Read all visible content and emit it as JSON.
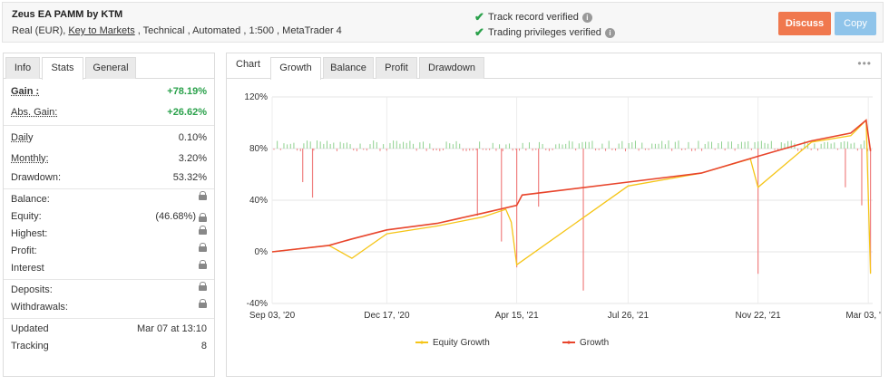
{
  "header": {
    "title": "Zeus EA PAMM by KTM",
    "meta_prefix": "Real (EUR), ",
    "meta_link": "Key to Markets",
    "meta_suffix": " , Technical , Automated , 1:500 , MetaTrader 4",
    "verified_1": "Track record verified",
    "verified_2": "Trading privileges verified",
    "discuss_label": "Discuss",
    "copy_label": "Copy",
    "accent_orange": "#f0784e",
    "accent_blue": "#8fc4ea"
  },
  "left_tabs": [
    "Info",
    "Stats",
    "General"
  ],
  "left_active_tab": "Stats",
  "stats": {
    "gain": {
      "label": "Gain :",
      "value": "+78.19%"
    },
    "abs_gain": {
      "label": "Abs. Gain:",
      "value": "+26.62%"
    },
    "daily": {
      "label": "Daily",
      "value": "0.10%"
    },
    "monthly": {
      "label": "Monthly:",
      "value": "3.20%"
    },
    "drawdown": {
      "label": "Drawdown:",
      "value": "53.32%"
    },
    "balance": {
      "label": "Balance:"
    },
    "equity": {
      "label": "Equity:",
      "value": "(46.68%)"
    },
    "highest": {
      "label": "Highest:"
    },
    "profit": {
      "label": "Profit:"
    },
    "interest": {
      "label": "Interest"
    },
    "deposits": {
      "label": "Deposits:"
    },
    "withdrawals": {
      "label": "Withdrawals:"
    },
    "updated": {
      "label": "Updated",
      "value": "Mar 07 at 13:10"
    },
    "tracking": {
      "label": "Tracking",
      "value": "8"
    }
  },
  "chart_tabs": {
    "label": "Chart",
    "tabs": [
      "Growth",
      "Balance",
      "Profit",
      "Drawdown"
    ],
    "active": "Growth",
    "menu_icon": "more-dots-icon"
  },
  "chart_data": {
    "type": "line",
    "y_ticks": [
      "120%",
      "80%",
      "40%",
      "0%",
      "-40%"
    ],
    "ylim": [
      -40,
      120
    ],
    "x_ticks": [
      "Sep 03, '20",
      "Dec 17, '20",
      "Apr 15, '21",
      "Jul 26, '21",
      "Nov 22, '21",
      "Mar 03, '22"
    ],
    "grid": true,
    "legend_position": "bottom",
    "series": [
      {
        "name": "Equity Growth",
        "color": "#f5c518",
        "x": [
          "Sep 03, '20",
          "Oct 25, '20",
          "Nov 15, '20",
          "Dec 17, '20",
          "Feb 01, '21",
          "Mar 15, '21",
          "Apr 05, '21",
          "Apr 10, '21",
          "Apr 15, '21",
          "Jul 26, '21",
          "Oct 01, '21",
          "Nov 15, '21",
          "Nov 22, '21",
          "Jan 10, '22",
          "Feb 15, '22",
          "Mar 01, '22",
          "Mar 05, '22"
        ],
        "values": [
          0,
          5,
          -5,
          14,
          20,
          27,
          33,
          23,
          -10,
          51,
          61,
          72,
          50,
          85,
          90,
          102,
          -17
        ]
      },
      {
        "name": "Growth",
        "color": "#e8452c",
        "x": [
          "Sep 03, '20",
          "Oct 25, '20",
          "Nov 15, '20",
          "Dec 17, '20",
          "Feb 01, '21",
          "Mar 15, '21",
          "Apr 15, '21",
          "Apr 20, '21",
          "Jul 26, '21",
          "Oct 01, '21",
          "Nov 22, '21",
          "Jan 10, '22",
          "Feb 15, '22",
          "Mar 01, '22",
          "Mar 05, '22"
        ],
        "values": [
          0,
          5,
          10,
          17,
          22,
          30,
          36,
          44,
          54,
          61,
          74,
          86,
          92,
          102,
          78
        ]
      }
    ],
    "daily_bars": {
      "positive_color": "#8fd18f",
      "negative_color": "#f08080",
      "baseline": 80,
      "spikes": [
        {
          "x": "Oct 01, '20",
          "value": 54
        },
        {
          "x": "Oct 10, '20",
          "value": 42
        },
        {
          "x": "Mar 10, '21",
          "value": 28
        },
        {
          "x": "Apr 01, '21",
          "value": 8
        },
        {
          "x": "Apr 15, '21",
          "value": -12
        },
        {
          "x": "May 05, '21",
          "value": 35
        },
        {
          "x": "Jun 15, '21",
          "value": -30
        },
        {
          "x": "Nov 22, '21",
          "value": -17
        },
        {
          "x": "Feb 10, '22",
          "value": 50
        },
        {
          "x": "Feb 25, '22",
          "value": 36
        },
        {
          "x": "Mar 05, '22",
          "value": -16
        }
      ]
    }
  }
}
